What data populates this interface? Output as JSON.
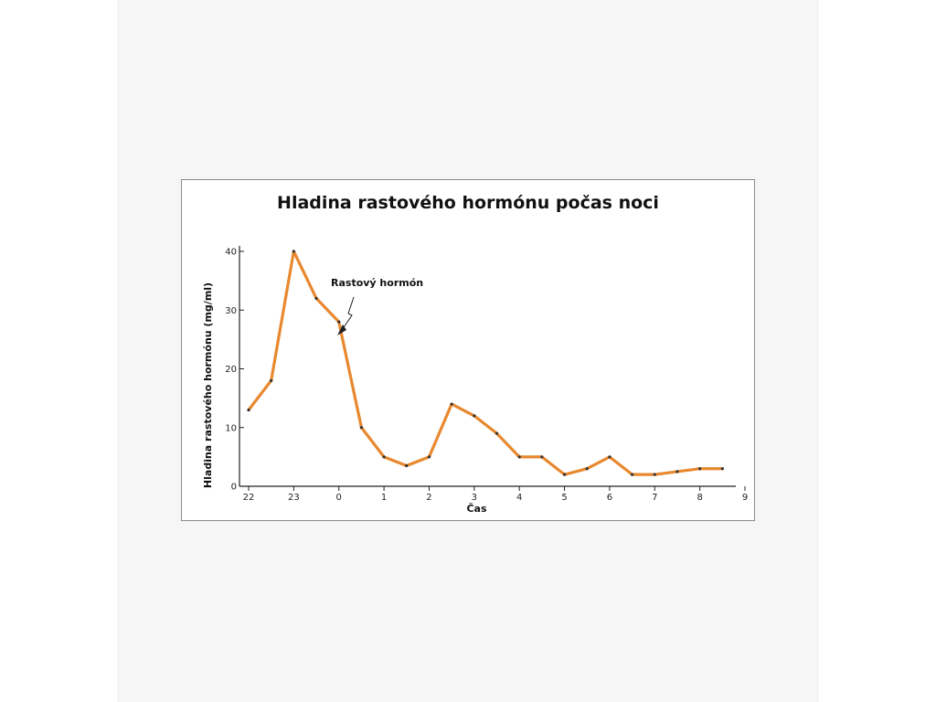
{
  "chart_data": {
    "type": "line",
    "title": "Hladina rastového hormónu počas noci",
    "xlabel": "Čas",
    "ylabel": "Hladina rastového hormónu (mg/ml)",
    "x_ticks": [
      "22",
      "23",
      "0",
      "1",
      "2",
      "3",
      "4",
      "5",
      "6",
      "7",
      "8",
      "9"
    ],
    "y_ticks": [
      0,
      10,
      20,
      30,
      40
    ],
    "xlim": [
      0,
      11
    ],
    "ylim": [
      0,
      40
    ],
    "grid": false,
    "annotation": "Rastový hormón",
    "line_color": "#e8882f",
    "series": [
      {
        "x": [
          0,
          0.5,
          1,
          1.5,
          2,
          2.5,
          3,
          3.5,
          4,
          4.5,
          5,
          5.5,
          6,
          6.5,
          7,
          7.5,
          8,
          8.5,
          9,
          9.5,
          10,
          10.5
        ],
        "values": [
          13,
          18,
          40,
          32,
          28,
          10,
          5,
          3.5,
          5,
          14,
          12,
          9,
          5,
          5,
          2,
          3,
          5,
          2,
          2,
          2.5,
          3,
          3
        ]
      }
    ]
  }
}
